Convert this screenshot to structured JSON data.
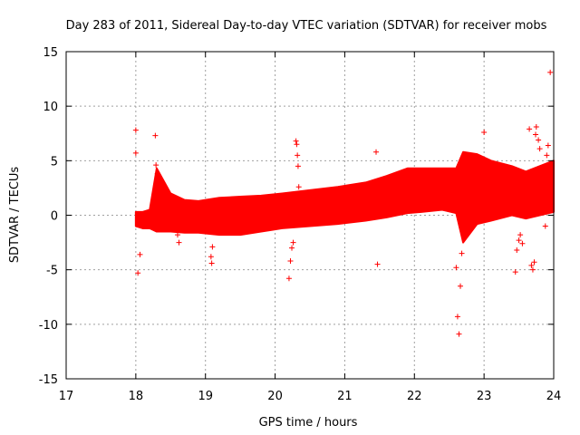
{
  "chart_data": {
    "type": "scatter",
    "title": "Day 283 of 2011, Sidereal Day-to-day VTEC variation (SDTVAR) for receiver mobs",
    "xlabel": "GPS time / hours",
    "ylabel": "SDTVAR / TECUs",
    "xlim": [
      17,
      24
    ],
    "ylim": [
      -15,
      15
    ],
    "xticks": [
      17,
      18,
      19,
      20,
      21,
      22,
      23,
      24
    ],
    "yticks": [
      -15,
      -10,
      -5,
      0,
      5,
      10,
      15
    ],
    "grid": true,
    "marker": "+",
    "color": "#ff0000",
    "band": {
      "name": "SDTVAR",
      "x": [
        18.0,
        18.1,
        18.2,
        18.3,
        18.5,
        18.7,
        18.9,
        19.2,
        19.5,
        19.8,
        20.1,
        20.5,
        20.9,
        21.3,
        21.6,
        21.9,
        22.1,
        22.4,
        22.6,
        22.7,
        22.9,
        23.1,
        23.4,
        23.6,
        23.8,
        24.0
      ],
      "upper": [
        0.3,
        0.3,
        0.5,
        4.3,
        2.0,
        1.4,
        1.3,
        1.6,
        1.7,
        1.8,
        2.0,
        2.3,
        2.6,
        3.0,
        3.6,
        4.3,
        4.3,
        4.3,
        4.3,
        5.8,
        5.6,
        5.0,
        4.5,
        4.0,
        4.5,
        5.0
      ],
      "lower": [
        -1.0,
        -1.2,
        -1.2,
        -1.5,
        -1.5,
        -1.6,
        -1.6,
        -1.8,
        -1.8,
        -1.5,
        -1.2,
        -1.0,
        -0.8,
        -0.5,
        -0.2,
        0.2,
        0.3,
        0.5,
        0.2,
        -2.5,
        -0.8,
        -0.5,
        0.0,
        -0.3,
        0.0,
        0.3
      ]
    },
    "outliers": {
      "x": [
        18.0,
        18.0,
        18.03,
        18.06,
        18.28,
        18.29,
        18.31,
        18.6,
        18.62,
        19.08,
        19.09,
        19.1,
        20.2,
        20.22,
        20.24,
        20.26,
        20.3,
        20.31,
        20.32,
        20.33,
        20.34,
        21.45,
        21.47,
        22.6,
        22.62,
        22.64,
        22.66,
        22.68,
        23.0,
        23.45,
        23.47,
        23.5,
        23.52,
        23.55,
        23.65,
        23.68,
        23.7,
        23.72,
        23.74,
        23.75,
        23.78,
        23.8,
        23.88,
        23.9,
        23.92,
        23.95
      ],
      "y": [
        7.8,
        5.7,
        -5.3,
        -3.6,
        7.3,
        4.6,
        3.8,
        -1.8,
        -2.5,
        -3.8,
        -4.4,
        -2.9,
        -5.8,
        -4.2,
        -3.0,
        -2.5,
        6.8,
        6.5,
        5.5,
        4.5,
        2.6,
        5.8,
        -4.5,
        -4.8,
        -9.3,
        -10.9,
        -6.5,
        -3.5,
        7.6,
        -5.2,
        -3.2,
        -2.3,
        -1.8,
        -2.6,
        7.9,
        -4.6,
        -5.0,
        -4.3,
        7.4,
        8.1,
        6.9,
        6.1,
        -1.0,
        5.5,
        6.4,
        13.1
      ]
    }
  }
}
